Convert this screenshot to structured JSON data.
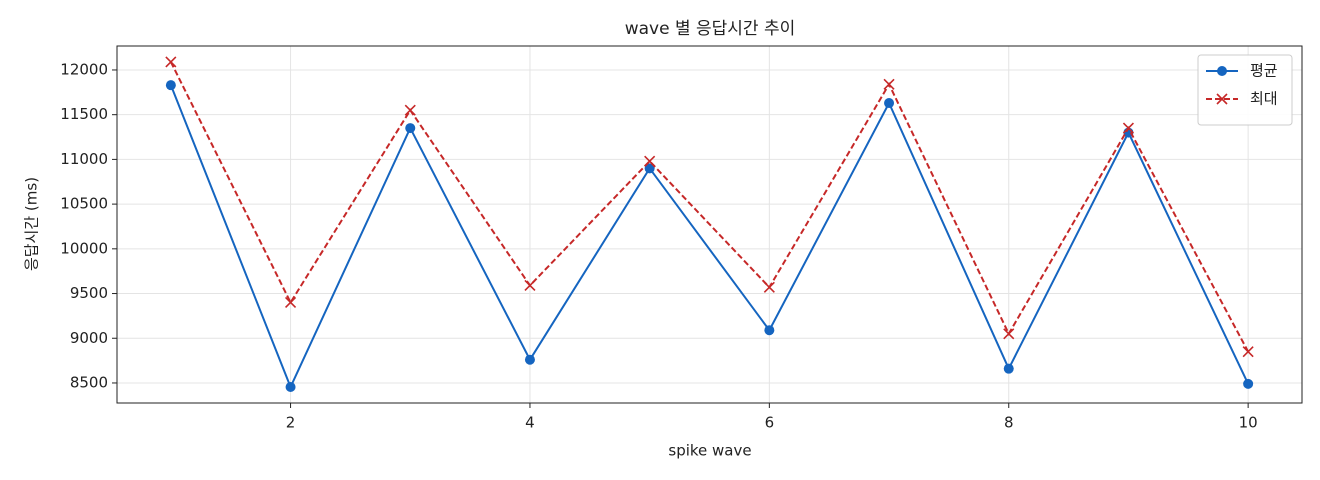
{
  "chart_data": {
    "type": "line",
    "title": "wave 별 응답시간 추이",
    "x_label": "spike wave",
    "y_label": "응답시간 (ms)",
    "x": [
      1,
      2,
      3,
      4,
      5,
      6,
      7,
      8,
      9,
      10
    ],
    "series": [
      {
        "name": "평균",
        "color": "#1565c0",
        "marker": "o",
        "linestyle": "solid",
        "values": [
          11830,
          8455,
          11350,
          8760,
          10900,
          9090,
          11630,
          8660,
          11300,
          8490
        ]
      },
      {
        "name": "최대",
        "color": "#c62828",
        "marker": "x",
        "linestyle": "dashed",
        "values": [
          12090,
          9400,
          11550,
          9590,
          10980,
          9570,
          11840,
          9050,
          11350,
          8850
        ]
      }
    ],
    "xlim": [
      0.55,
      10.45
    ],
    "ylim": [
      8276,
      12268
    ],
    "xticks": [
      2,
      4,
      6,
      8,
      10
    ],
    "yticks": [
      8500,
      9000,
      9500,
      10000,
      10500,
      11000,
      11500,
      12000
    ],
    "grid": true,
    "legend": "upper right"
  }
}
